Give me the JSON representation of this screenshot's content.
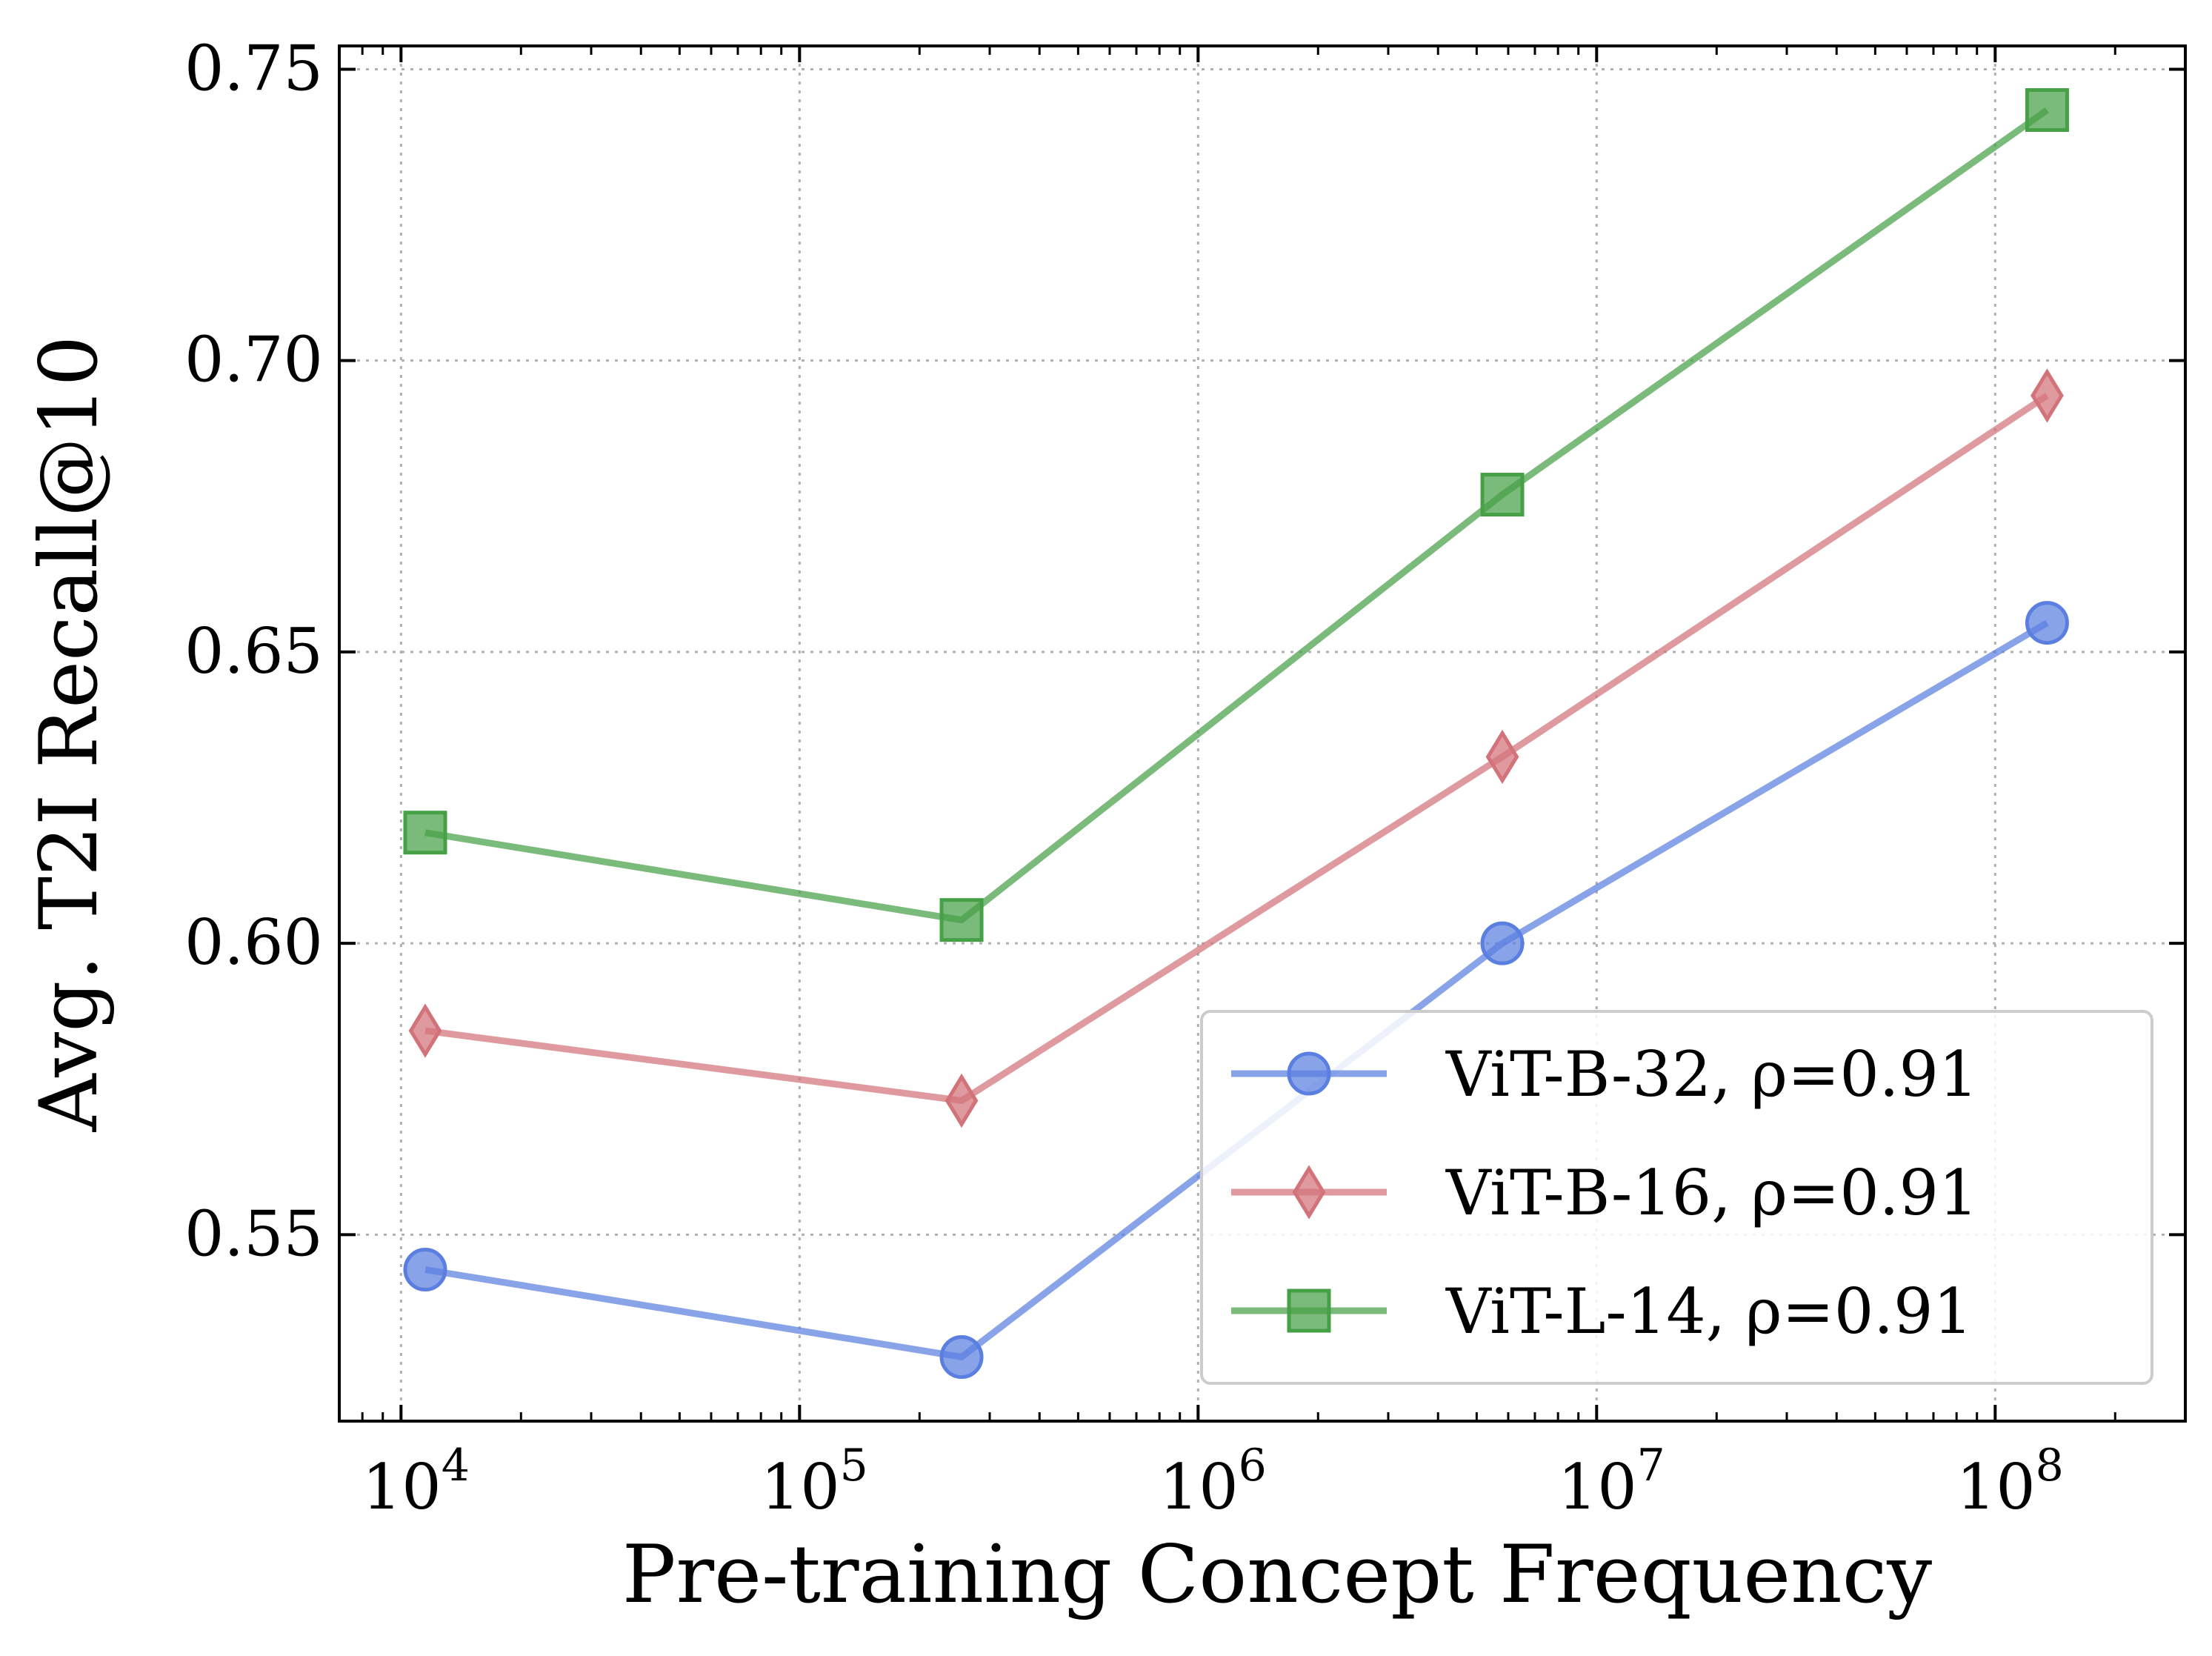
{
  "chart_data": {
    "type": "line",
    "xlabel": "Pre-training Concept Frequency",
    "ylabel": "Avg. T2I Recall@10",
    "x_scale": "log",
    "xlim": [
      7000,
      300000000
    ],
    "ylim": [
      0.518,
      0.754
    ],
    "x_ticks": [
      {
        "value": 10000,
        "base": "10",
        "exp": "4"
      },
      {
        "value": 100000,
        "base": "10",
        "exp": "5"
      },
      {
        "value": 1000000,
        "base": "10",
        "exp": "6"
      },
      {
        "value": 10000000,
        "base": "10",
        "exp": "7"
      },
      {
        "value": 100000000,
        "base": "10",
        "exp": "8"
      }
    ],
    "y_ticks": [
      {
        "value": 0.55,
        "label": "0.55"
      },
      {
        "value": 0.6,
        "label": "0.60"
      },
      {
        "value": 0.65,
        "label": "0.65"
      },
      {
        "value": 0.7,
        "label": "0.70"
      },
      {
        "value": 0.75,
        "label": "0.75"
      }
    ],
    "grid": true,
    "legend_position": "lower-right",
    "series": [
      {
        "name": "ViT-B-32, ρ=0.91",
        "marker": "circle",
        "color": "#5b7fe0",
        "x": [
          11500,
          255000,
          5800000,
          135000000
        ],
        "y": [
          0.544,
          0.529,
          0.6,
          0.655
        ]
      },
      {
        "name": "ViT-B-16, ρ=0.91",
        "marker": "diamond",
        "color": "#d2737a",
        "x": [
          11500,
          255000,
          5800000,
          135000000
        ],
        "y": [
          0.585,
          0.573,
          0.632,
          0.694
        ]
      },
      {
        "name": "ViT-L-14, ρ=0.91",
        "marker": "square",
        "color": "#46a046",
        "x": [
          11500,
          255000,
          5800000,
          135000000
        ],
        "y": [
          0.619,
          0.604,
          0.677,
          0.743
        ]
      }
    ]
  }
}
